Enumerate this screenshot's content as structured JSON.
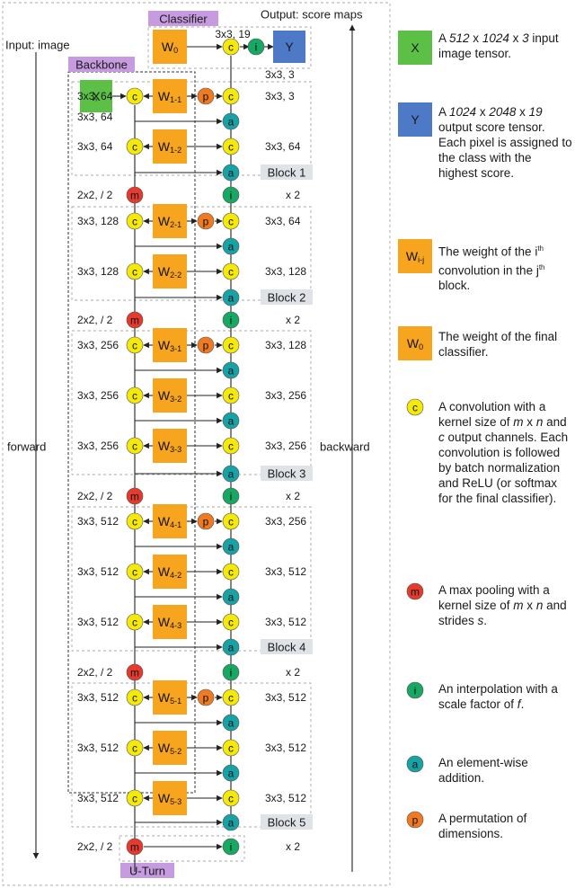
{
  "header": {
    "input_label": "Input: image",
    "output_label": "Output: score maps",
    "backbone_label": "Backbone",
    "classifier_label": "Classifier",
    "uturn_label": "U-Turn",
    "forward_label": "forward",
    "backward_label": "backward"
  },
  "colors": {
    "conv": "#f5e90a",
    "maxpool": "#e53a2c",
    "interp": "#17a864",
    "add": "#17a3a6",
    "perm": "#f07a22",
    "weight": "#f7a51e",
    "input": "#5cc047",
    "output": "#4e79c7",
    "tag": "#c79be0",
    "block": "#dfe3e8"
  },
  "nodes": {
    "conv": "c",
    "maxpool": "m",
    "interp": "i",
    "add": "a",
    "perm": "p",
    "input": "X",
    "output": "Y"
  },
  "classifier": {
    "weight": "W",
    "weight_sub": "0",
    "conv_spec": "3x3, 19"
  },
  "stem_spec": "3x3, 3",
  "blocks": [
    {
      "name": "Block 1",
      "convs": [
        {
          "weight": "W",
          "sub": "1-1",
          "fwd": "3x3, 64",
          "bwd": "3x3, 3"
        },
        {
          "weight": "W",
          "sub": "1-2",
          "fwd": "3x3, 64",
          "bwd": "3x3, 64"
        }
      ],
      "pool": "2x2, / 2",
      "interp": "x 2"
    },
    {
      "name": "Block 2",
      "convs": [
        {
          "weight": "W",
          "sub": "2-1",
          "fwd": "3x3, 128",
          "bwd": "3x3, 64"
        },
        {
          "weight": "W",
          "sub": "2-2",
          "fwd": "3x3, 128",
          "bwd": "3x3, 128"
        }
      ],
      "pool": "2x2, / 2",
      "interp": "x 2"
    },
    {
      "name": "Block 3",
      "convs": [
        {
          "weight": "W",
          "sub": "3-1",
          "fwd": "3x3, 256",
          "bwd": "3x3, 128"
        },
        {
          "weight": "W",
          "sub": "3-2",
          "fwd": "3x3, 256",
          "bwd": "3x3, 256"
        },
        {
          "weight": "W",
          "sub": "3-3",
          "fwd": "3x3, 256",
          "bwd": "3x3, 256"
        }
      ],
      "pool": "2x2, / 2",
      "interp": "x 2"
    },
    {
      "name": "Block 4",
      "convs": [
        {
          "weight": "W",
          "sub": "4-1",
          "fwd": "3x3, 512",
          "bwd": "3x3, 256"
        },
        {
          "weight": "W",
          "sub": "4-2",
          "fwd": "3x3, 512",
          "bwd": "3x3, 512"
        },
        {
          "weight": "W",
          "sub": "4-3",
          "fwd": "3x3, 512",
          "bwd": "3x3, 512"
        }
      ],
      "pool": "2x2, / 2",
      "interp": "x 2"
    },
    {
      "name": "Block 5",
      "convs": [
        {
          "weight": "W",
          "sub": "5-1",
          "fwd": "3x3, 512",
          "bwd": "3x3, 512"
        },
        {
          "weight": "W",
          "sub": "5-2",
          "fwd": "3x3, 512",
          "bwd": "3x3, 512"
        },
        {
          "weight": "W",
          "sub": "5-3",
          "fwd": "3x3, 512",
          "bwd": "3x3, 512"
        }
      ],
      "pool": "2x2, / 2",
      "interp": "x 2"
    }
  ],
  "legend": {
    "input_desc": {
      "pre": "A ",
      "dims": [
        "512",
        "1024",
        "3"
      ],
      "sep": " x ",
      "post": " input image tensor."
    },
    "output_desc": {
      "pre": "A ",
      "dims": [
        "1024",
        "2048",
        "19"
      ],
      "sep": " x ",
      "post": " output score tensor. Each pixel is assigned to the class with the highest score."
    },
    "weight_glyph": "W",
    "weight_glyph_sub": "i-j",
    "weight_desc": {
      "a": "The weight of the i",
      "sup1": "th",
      "b": " convolution in the j",
      "sup2": "th",
      "c": " block."
    },
    "classifier_glyph": "W",
    "classifier_glyph_sub": "0",
    "classifier_desc": "The weight of the final classifier.",
    "conv_desc": {
      "a": "A convolution with a kernel size of ",
      "m": "m",
      "x": " x ",
      "n": "n",
      "b": " and ",
      "c": "c",
      "d": " output channels. Each convolution is followed by batch normalization and ReLU (or softmax for the final classifier)."
    },
    "maxpool_desc": {
      "a": "A max pooling with a kernel size of ",
      "m": "m",
      "x": " x  ",
      "n": "n",
      "b": " and strides ",
      "s": "s",
      "c": "."
    },
    "interp_desc": {
      "a": "An interpolation with a scale factor of ",
      "f": "f",
      "b": "."
    },
    "add_desc": "An element-wise addition.",
    "perm_desc": "A permutation of dimensions."
  }
}
